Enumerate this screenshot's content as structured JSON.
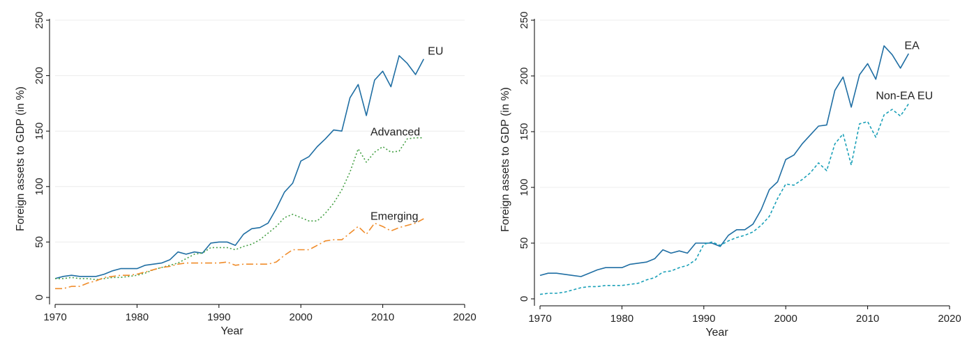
{
  "chart_data": [
    {
      "type": "line",
      "ylabel": "Foreign assets to GDP (in %)",
      "xlabel": "Year",
      "xlim": [
        1970,
        2020
      ],
      "ylim": [
        0,
        250
      ],
      "xticks": [
        "1970",
        "1980",
        "1990",
        "2000",
        "2010",
        "2020"
      ],
      "yticks": [
        "0",
        "50",
        "100",
        "150",
        "200",
        "250"
      ],
      "grid": true,
      "legend": "direct labels",
      "series": [
        {
          "name": "EU",
          "color": "#1f6ea3",
          "style": "solid",
          "label_at": [
            2015.5,
            219
          ],
          "x": [
            1970,
            1971,
            1972,
            1973,
            1974,
            1975,
            1976,
            1977,
            1978,
            1979,
            1980,
            1981,
            1982,
            1983,
            1984,
            1985,
            1986,
            1987,
            1988,
            1989,
            1990,
            1991,
            1992,
            1993,
            1994,
            1995,
            1996,
            1997,
            1998,
            1999,
            2000,
            2001,
            2002,
            2003,
            2004,
            2005,
            2006,
            2007,
            2008,
            2009,
            2010,
            2011,
            2012,
            2013,
            2014,
            2015
          ],
          "y": [
            17,
            19,
            20,
            19,
            19,
            19,
            21,
            24,
            26,
            26,
            26,
            29,
            30,
            31,
            34,
            41,
            39,
            41,
            40,
            49,
            50,
            50,
            47,
            57,
            62,
            63,
            67,
            80,
            95,
            103,
            123,
            127,
            136,
            143,
            151,
            150,
            180,
            192,
            164,
            196,
            204,
            190,
            218,
            211,
            201,
            215
          ]
        },
        {
          "name": "Advanced",
          "color": "#44a044",
          "style": "dot",
          "label_at": [
            2008.5,
            146
          ],
          "x": [
            1970,
            1971,
            1972,
            1973,
            1974,
            1975,
            1976,
            1977,
            1978,
            1979,
            1980,
            1981,
            1982,
            1983,
            1984,
            1985,
            1986,
            1987,
            1988,
            1989,
            1990,
            1991,
            1992,
            1993,
            1994,
            1995,
            1996,
            1997,
            1998,
            1999,
            2000,
            2001,
            2002,
            2003,
            2004,
            2005,
            2006,
            2007,
            2008,
            2009,
            2010,
            2011,
            2012,
            2013,
            2014,
            2015
          ],
          "y": [
            17,
            17,
            18,
            17,
            17,
            16,
            17,
            18,
            18,
            19,
            20,
            22,
            25,
            27,
            29,
            31,
            35,
            39,
            40,
            45,
            45,
            45,
            43,
            46,
            48,
            52,
            58,
            64,
            72,
            75,
            72,
            69,
            69,
            76,
            85,
            97,
            113,
            134,
            122,
            131,
            136,
            131,
            132,
            143,
            144,
            144
          ]
        },
        {
          "name": "Emerging",
          "color": "#f08c2a",
          "style": "longdash-dot",
          "label_at": [
            2008.5,
            70
          ],
          "x": [
            1970,
            1971,
            1972,
            1973,
            1974,
            1975,
            1976,
            1977,
            1978,
            1979,
            1980,
            1981,
            1982,
            1983,
            1984,
            1985,
            1986,
            1987,
            1988,
            1989,
            1990,
            1991,
            1992,
            1993,
            1994,
            1995,
            1996,
            1997,
            1998,
            1999,
            2000,
            2001,
            2002,
            2003,
            2004,
            2005,
            2006,
            2007,
            2008,
            2009,
            2010,
            2011,
            2012,
            2013,
            2014,
            2015
          ],
          "y": [
            8,
            8,
            10,
            10,
            13,
            15,
            18,
            19,
            20,
            20,
            21,
            23,
            25,
            27,
            28,
            30,
            31,
            31,
            31,
            31,
            31,
            32,
            29,
            30,
            30,
            30,
            30,
            32,
            38,
            43,
            43,
            43,
            47,
            51,
            52,
            52,
            58,
            64,
            57,
            67,
            64,
            60,
            63,
            65,
            67,
            71
          ]
        }
      ]
    },
    {
      "type": "line",
      "ylabel": "Foreign assets to GDP (in %)",
      "xlabel": "Year",
      "xlim": [
        1970,
        2020
      ],
      "ylim": [
        0,
        250
      ],
      "xticks": [
        "1970",
        "1980",
        "1990",
        "2000",
        "2010",
        "2020"
      ],
      "yticks": [
        "0",
        "50",
        "100",
        "150",
        "200",
        "250"
      ],
      "grid": true,
      "legend": "direct labels",
      "series": [
        {
          "name": "EA",
          "color": "#1f6ea3",
          "style": "solid",
          "label_at": [
            2014.5,
            224
          ],
          "x": [
            1970,
            1971,
            1972,
            1973,
            1974,
            1975,
            1976,
            1977,
            1978,
            1979,
            1980,
            1981,
            1982,
            1983,
            1984,
            1985,
            1986,
            1987,
            1988,
            1989,
            1990,
            1991,
            1992,
            1993,
            1994,
            1995,
            1996,
            1997,
            1998,
            1999,
            2000,
            2001,
            2002,
            2003,
            2004,
            2005,
            2006,
            2007,
            2008,
            2009,
            2010,
            2011,
            2012,
            2013,
            2014,
            2015
          ],
          "y": [
            21,
            23,
            23,
            22,
            21,
            20,
            23,
            26,
            28,
            28,
            28,
            31,
            32,
            33,
            36,
            44,
            41,
            43,
            41,
            50,
            50,
            50,
            47,
            57,
            62,
            62,
            67,
            80,
            98,
            105,
            125,
            129,
            139,
            147,
            155,
            156,
            187,
            199,
            172,
            201,
            211,
            197,
            227,
            219,
            207,
            220
          ]
        },
        {
          "name": "Non-EA EU",
          "color": "#1aa0b8",
          "style": "dash",
          "label_at": [
            2011,
            179
          ],
          "x": [
            1970,
            1971,
            1972,
            1973,
            1974,
            1975,
            1976,
            1977,
            1978,
            1979,
            1980,
            1981,
            1982,
            1983,
            1984,
            1985,
            1986,
            1987,
            1988,
            1989,
            1990,
            1991,
            1992,
            1993,
            1994,
            1995,
            1996,
            1997,
            1998,
            1999,
            2000,
            2001,
            2002,
            2003,
            2004,
            2005,
            2006,
            2007,
            2008,
            2009,
            2010,
            2011,
            2012,
            2013,
            2014,
            2015
          ],
          "y": [
            4,
            5,
            5,
            6,
            8,
            10,
            11,
            11,
            12,
            12,
            12,
            13,
            14,
            17,
            19,
            24,
            25,
            28,
            30,
            35,
            49,
            51,
            48,
            52,
            55,
            57,
            60,
            66,
            74,
            90,
            103,
            102,
            107,
            113,
            122,
            115,
            139,
            148,
            120,
            157,
            159,
            145,
            165,
            170,
            164,
            175
          ]
        }
      ]
    }
  ]
}
